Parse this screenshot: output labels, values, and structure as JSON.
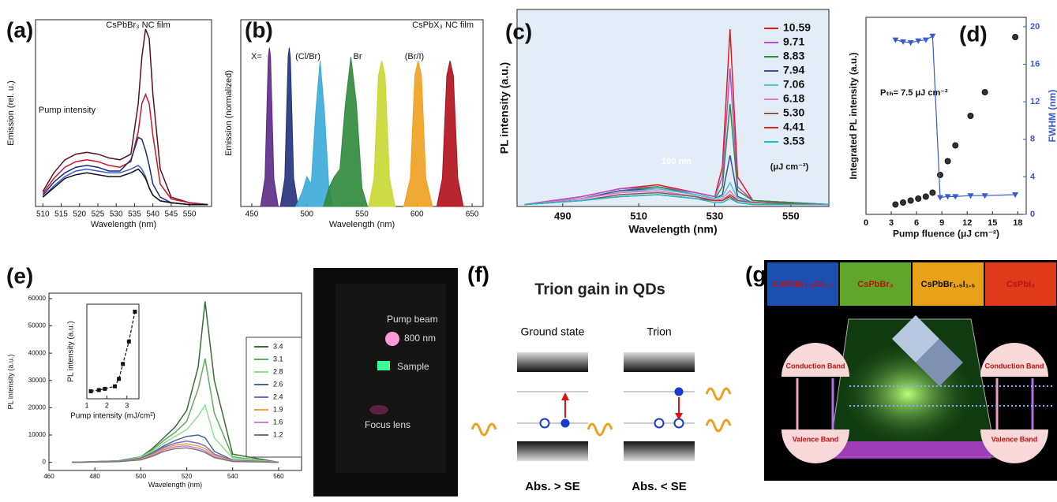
{
  "chart_data": [
    {
      "type": "line",
      "panel": "(a)",
      "title": "CsPbBr₃ NC film",
      "x_label": "Wavelength (nm)",
      "y_label": "Emission (rel. u.)",
      "annotations": [
        "Pump intensity"
      ],
      "x": [
        510,
        513,
        516,
        519,
        522,
        525,
        528,
        531,
        534,
        536,
        537,
        538,
        539,
        540,
        542,
        545,
        550,
        555
      ],
      "series": [
        {
          "color": "#5a0f1e",
          "values": [
            0.08,
            0.18,
            0.25,
            0.28,
            0.29,
            0.28,
            0.26,
            0.25,
            0.28,
            0.55,
            0.8,
            0.95,
            0.9,
            0.6,
            0.2,
            0.05,
            0.02,
            0.01
          ]
        },
        {
          "color": "#d0142c",
          "values": [
            0.07,
            0.15,
            0.21,
            0.24,
            0.25,
            0.24,
            0.22,
            0.21,
            0.24,
            0.4,
            0.55,
            0.6,
            0.55,
            0.38,
            0.12,
            0.04,
            0.02,
            0.01
          ]
        },
        {
          "color": "#1a2a7a",
          "values": [
            0.06,
            0.13,
            0.18,
            0.21,
            0.22,
            0.21,
            0.19,
            0.19,
            0.25,
            0.37,
            0.36,
            0.3,
            0.22,
            0.12,
            0.05,
            0.02,
            0.01,
            0.01
          ]
        },
        {
          "color": "#3a5ad0",
          "values": [
            0.05,
            0.11,
            0.16,
            0.19,
            0.2,
            0.19,
            0.18,
            0.18,
            0.2,
            0.22,
            0.2,
            0.16,
            0.1,
            0.06,
            0.03,
            0.02,
            0.01,
            0.01
          ]
        },
        {
          "color": "#111111",
          "values": [
            0.05,
            0.1,
            0.15,
            0.17,
            0.18,
            0.17,
            0.16,
            0.16,
            0.18,
            0.2,
            0.18,
            0.15,
            0.1,
            0.06,
            0.03,
            0.02,
            0.01,
            0.01
          ]
        }
      ],
      "xlim": [
        508,
        556
      ],
      "xticks": [
        510,
        515,
        520,
        525,
        530,
        535,
        540,
        545,
        550
      ],
      "ylim": [
        0,
        1
      ]
    },
    {
      "type": "area",
      "panel": "(b)",
      "title": "CsPbX₃ NC film",
      "x_label": "Wavelength (nm)",
      "y_label": "Emission (normalized)",
      "annotations": [
        "X=",
        "(Cl/Br)",
        "Br",
        "(Br/I)"
      ],
      "series": [
        {
          "color": "#5b2a86",
          "x": [
            458,
            462,
            465,
            466,
            467,
            470,
            474
          ],
          "values": [
            0,
            0.15,
            0.8,
            0.85,
            0.8,
            0.15,
            0
          ]
        },
        {
          "color": "#23307a",
          "x": [
            476,
            480,
            483,
            484,
            485,
            488,
            492
          ],
          "values": [
            0,
            0.15,
            0.8,
            0.85,
            0.8,
            0.15,
            0
          ]
        },
        {
          "color": "#3aaad8",
          "x": [
            490,
            496,
            500,
            504,
            508,
            512,
            516,
            520,
            524
          ],
          "values": [
            0,
            0.08,
            0.16,
            0.12,
            0.5,
            0.78,
            0.5,
            0.1,
            0
          ]
        },
        {
          "color": "#2f8a3a",
          "x": [
            515,
            520,
            525,
            530,
            535,
            540,
            545,
            550,
            555
          ],
          "values": [
            0,
            0.1,
            0.16,
            0.2,
            0.55,
            0.8,
            0.55,
            0.1,
            0
          ]
        },
        {
          "color": "#c8d830",
          "x": [
            556,
            561,
            565,
            568,
            571,
            575,
            580
          ],
          "values": [
            0,
            0.15,
            0.7,
            0.78,
            0.7,
            0.15,
            0
          ]
        },
        {
          "color": "#f0a020",
          "x": [
            588,
            594,
            598,
            601,
            604,
            608,
            614
          ],
          "values": [
            0,
            0.15,
            0.7,
            0.78,
            0.7,
            0.15,
            0
          ]
        },
        {
          "color": "#b0101a",
          "x": [
            618,
            623,
            627,
            630,
            633,
            637,
            642
          ],
          "values": [
            0,
            0.15,
            0.7,
            0.78,
            0.7,
            0.15,
            0
          ]
        }
      ],
      "xlim": [
        440,
        660
      ],
      "xticks": [
        450,
        500,
        550,
        600,
        650
      ],
      "ylim": [
        0,
        1
      ]
    },
    {
      "type": "line",
      "panel": "(c)",
      "x_label": "Wavelength (nm)",
      "y_label": "PL intensity (a.u.)",
      "annotations": [
        "100 nm",
        "(μJ cm⁻²)"
      ],
      "legend": "upper right",
      "x": [
        480,
        495,
        505,
        515,
        525,
        530,
        532,
        534,
        536,
        540,
        560
      ],
      "series": [
        {
          "name": "10.59",
          "color": "#e31a1c",
          "values": [
            0.01,
            0.05,
            0.09,
            0.11,
            0.07,
            0.05,
            0.2,
            0.9,
            0.15,
            0.03,
            0.01
          ]
        },
        {
          "name": "9.71",
          "color": "#b04fd0",
          "values": [
            0.01,
            0.05,
            0.09,
            0.1,
            0.07,
            0.05,
            0.15,
            0.7,
            0.1,
            0.03,
            0.01
          ]
        },
        {
          "name": "8.83",
          "color": "#2e8b3a",
          "values": [
            0.01,
            0.04,
            0.08,
            0.1,
            0.06,
            0.04,
            0.1,
            0.52,
            0.08,
            0.03,
            0.01
          ]
        },
        {
          "name": "7.94",
          "color": "#3d4ea8",
          "values": [
            0.01,
            0.04,
            0.08,
            0.09,
            0.06,
            0.04,
            0.06,
            0.26,
            0.05,
            0.02,
            0.01
          ]
        },
        {
          "name": "7.06",
          "color": "#4fc3d9",
          "values": [
            0.01,
            0.04,
            0.07,
            0.09,
            0.06,
            0.04,
            0.05,
            0.12,
            0.04,
            0.02,
            0.01
          ]
        },
        {
          "name": "6.18",
          "color": "#e377c2",
          "values": [
            0.01,
            0.04,
            0.07,
            0.08,
            0.05,
            0.03,
            0.04,
            0.08,
            0.03,
            0.02,
            0.01
          ]
        },
        {
          "name": "5.30",
          "color": "#8c564b",
          "values": [
            0.01,
            0.03,
            0.06,
            0.07,
            0.05,
            0.03,
            0.03,
            0.06,
            0.03,
            0.02,
            0.01
          ]
        },
        {
          "name": "4.41",
          "color": "#d62728",
          "values": [
            0.01,
            0.03,
            0.05,
            0.06,
            0.04,
            0.03,
            0.03,
            0.05,
            0.02,
            0.01,
            0.01
          ]
        },
        {
          "name": "3.53",
          "color": "#17becf",
          "values": [
            0.01,
            0.03,
            0.05,
            0.06,
            0.04,
            0.02,
            0.02,
            0.04,
            0.02,
            0.01,
            0.01
          ]
        }
      ],
      "xlim": [
        478,
        560
      ],
      "xticks": [
        490,
        510,
        530,
        550
      ],
      "ylim": [
        0,
        1
      ]
    },
    {
      "type": "scatter",
      "panel": "(d)",
      "x_label": "Pump fluence (μJ cm⁻²)",
      "y_label": "Integrated PL intensity (a.u.)",
      "y2_label": "FWHM (nm)",
      "annotations": [
        "Pₜₕ= 7.5 μJ cm⁻²"
      ],
      "series": [
        {
          "color": "#222222",
          "marker": "circle",
          "x": [
            3.5,
            4.4,
            5.3,
            6.2,
            7.1,
            7.9,
            8.8,
            9.7,
            10.6,
            12.4,
            14.1,
            17.7
          ],
          "values": [
            0.05,
            0.06,
            0.07,
            0.08,
            0.09,
            0.11,
            0.2,
            0.27,
            0.35,
            0.5,
            0.62,
            0.9
          ]
        },
        {
          "color": "#3a5ad0",
          "marker": "triangle",
          "line": true,
          "axis": "y2",
          "x": [
            3.5,
            4.4,
            5.3,
            6.2,
            7.1,
            7.9,
            8.8,
            9.7,
            10.6,
            12.4,
            14.1,
            17.7
          ],
          "values": [
            18.6,
            18.4,
            18.3,
            18.5,
            18.6,
            19,
            1.8,
            1.9,
            1.9,
            2,
            2,
            2.1
          ]
        }
      ],
      "xlim": [
        0,
        19
      ],
      "xticks": [
        0,
        3,
        6,
        9,
        12,
        15,
        18
      ],
      "ylim": [
        0,
        1
      ],
      "y2lim": [
        0,
        21
      ],
      "y2ticks": [
        0,
        4,
        8,
        12,
        16,
        20
      ]
    },
    {
      "type": "line",
      "panel": "(e)",
      "x_label": "Wavelength (nm)",
      "y_label": "PL intensity (a.u.)",
      "annotations": [
        "mJ/cm²"
      ],
      "legend": "right",
      "x": [
        470,
        490,
        500,
        505,
        510,
        515,
        520,
        525,
        528,
        532,
        540,
        560
      ],
      "series": [
        {
          "name": "3.4",
          "color": "#3a6b3a",
          "values": [
            0,
            500,
            2000,
            5000,
            9000,
            13000,
            19000,
            35000,
            59000,
            30000,
            3000,
            0
          ]
        },
        {
          "name": "3.1",
          "color": "#5fae5f",
          "values": [
            0,
            500,
            2000,
            4500,
            8000,
            11000,
            15000,
            27000,
            38000,
            18000,
            2000,
            0
          ]
        },
        {
          "name": "2.8",
          "color": "#8fe08f",
          "values": [
            0,
            400,
            1800,
            4000,
            7000,
            9500,
            12000,
            17000,
            21000,
            9000,
            1500,
            0
          ]
        },
        {
          "name": "2.6",
          "color": "#4a6a8a",
          "values": [
            0,
            400,
            1500,
            3500,
            6000,
            8000,
            9500,
            10000,
            9000,
            4000,
            800,
            0
          ]
        },
        {
          "name": "2.4",
          "color": "#7b6bbf",
          "values": [
            0,
            300,
            1300,
            3000,
            5500,
            7000,
            7800,
            7000,
            6000,
            3000,
            600,
            0
          ]
        },
        {
          "name": "1.9",
          "color": "#f0a040",
          "values": [
            0,
            300,
            1200,
            2800,
            5000,
            6300,
            6800,
            6000,
            5000,
            2500,
            500,
            0
          ]
        },
        {
          "name": "1.6",
          "color": "#d080d0",
          "values": [
            0,
            300,
            1000,
            2500,
            4500,
            5700,
            6000,
            5200,
            4200,
            2000,
            400,
            0
          ]
        },
        {
          "name": "1.2",
          "color": "#777777",
          "values": [
            0,
            200,
            900,
            2200,
            4000,
            5000,
            5300,
            4500,
            3600,
            1700,
            300,
            0
          ]
        }
      ],
      "xlim": [
        460,
        570
      ],
      "xticks": [
        460,
        480,
        500,
        520,
        540,
        560
      ],
      "ylim": [
        -3000,
        62000
      ],
      "yticks": [
        0,
        10000,
        20000,
        30000,
        40000,
        50000,
        60000
      ]
    },
    {
      "type": "scatter",
      "x_label": "Pump intensity (mJ/cm²)",
      "y_label": "PL intensity (a.u.)",
      "series": [
        {
          "color": "#111111",
          "marker": "square",
          "line": true,
          "x": [
            1.2,
            1.6,
            1.9,
            2.4,
            2.6,
            2.8,
            3.1,
            3.4
          ],
          "values": [
            25000,
            25500,
            26000,
            27000,
            30000,
            36000,
            45000,
            57000
          ]
        }
      ],
      "xlim": [
        1,
        3.6
      ],
      "xticks": [
        1,
        2,
        3
      ],
      "ylim": [
        22000,
        60000
      ]
    }
  ],
  "photo_e": {
    "labels": [
      "Pump beam",
      "800 nm",
      "Sample",
      "Focus lens"
    ]
  },
  "diagram_f": {
    "panel": "(f)",
    "title": "Trion gain in QDs",
    "states": [
      {
        "label": "Ground state",
        "caption": "Abs. > SE"
      },
      {
        "label": "Trion",
        "caption": "Abs. < SE"
      }
    ]
  },
  "image_g": {
    "panel": "(g)",
    "compositions": [
      "CsPbBr₁.₅Cl₁.₅",
      "CsPbBr₃",
      "CsPbBr₁.₅I₁.₅",
      "CsPbI₃"
    ],
    "bands": [
      "Conduction Band",
      "Conduction Band",
      "Valence Band",
      "Valence Band"
    ]
  }
}
